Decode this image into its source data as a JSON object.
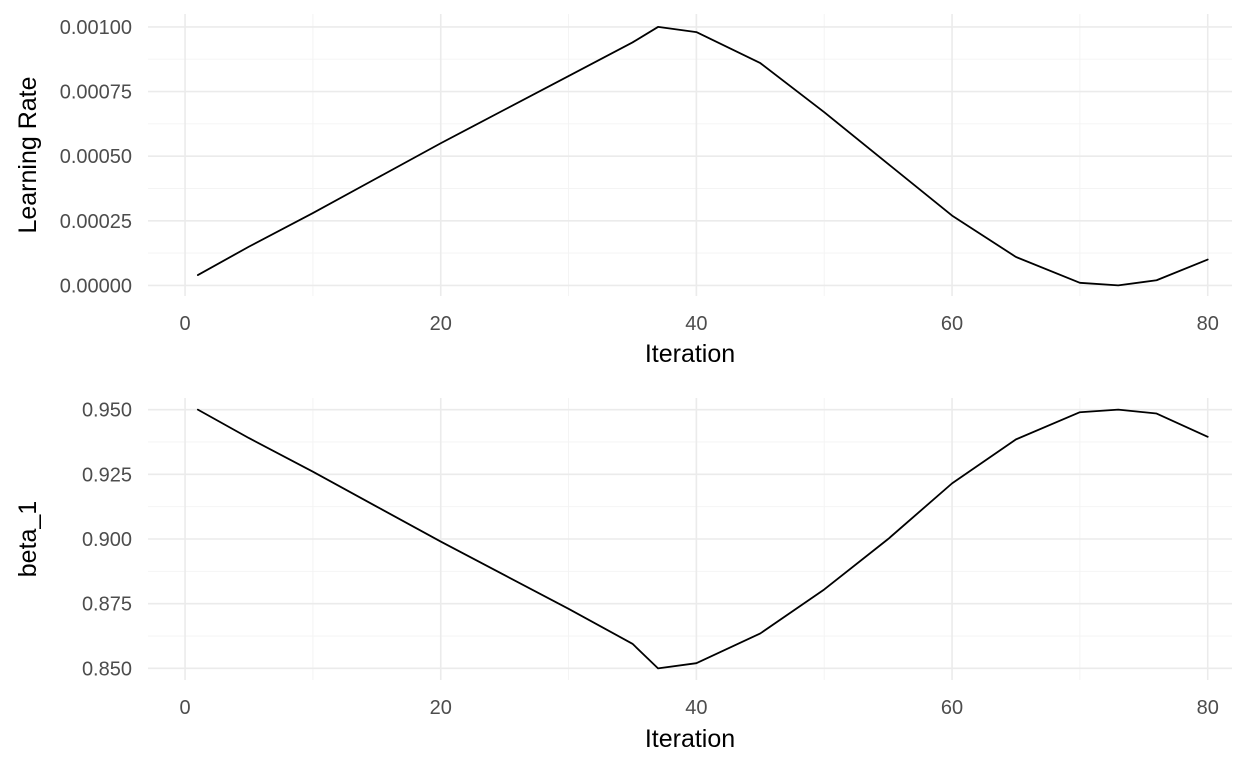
{
  "chart_data": [
    {
      "type": "line",
      "xlabel": "Iteration",
      "ylabel": "Learning Rate",
      "xlim": [
        -2.9,
        81.9
      ],
      "ylim": [
        -4.1e-05,
        0.00105
      ],
      "x_ticks": [
        0,
        20,
        40,
        60,
        80
      ],
      "x_tick_labels": [
        "0",
        "20",
        "40",
        "60",
        "80"
      ],
      "y_ticks": [
        0,
        0.00025,
        0.0005,
        0.00075,
        0.001
      ],
      "y_tick_labels": [
        "0.00000",
        "0.00025",
        "0.00050",
        "0.00075",
        "0.00100"
      ],
      "grid": true,
      "legend": "none",
      "series": [
        {
          "color": "#000000",
          "x": [
            1,
            5,
            10,
            15,
            20,
            25,
            30,
            35,
            37,
            40,
            45,
            50,
            55,
            60,
            65,
            70,
            73,
            76,
            80
          ],
          "y": [
            4e-05,
            0.00015,
            0.00028,
            0.000415,
            0.00055,
            0.00068,
            0.00081,
            0.00094,
            0.001,
            0.00098,
            0.00086,
            0.00067,
            0.00047,
            0.00027,
            0.00011,
            1e-05,
            0.0,
            2e-05,
            0.0001
          ]
        }
      ]
    },
    {
      "type": "line",
      "xlabel": "Iteration",
      "ylabel": "beta_1",
      "xlim": [
        -2.9,
        81.9
      ],
      "ylim": [
        0.8455,
        0.9545
      ],
      "x_ticks": [
        0,
        20,
        40,
        60,
        80
      ],
      "x_tick_labels": [
        "0",
        "20",
        "40",
        "60",
        "80"
      ],
      "y_ticks": [
        0.85,
        0.875,
        0.9,
        0.925,
        0.95
      ],
      "y_tick_labels": [
        "0.850",
        "0.875",
        "0.900",
        "0.925",
        "0.950"
      ],
      "grid": true,
      "legend": "none",
      "series": [
        {
          "color": "#000000",
          "x": [
            1,
            5,
            10,
            15,
            20,
            25,
            30,
            35,
            37,
            40,
            45,
            50,
            55,
            60,
            65,
            70,
            73,
            76,
            80
          ],
          "y": [
            0.95,
            0.939,
            0.926,
            0.9125,
            0.899,
            0.886,
            0.873,
            0.8595,
            0.85,
            0.852,
            0.8635,
            0.8805,
            0.9,
            0.9215,
            0.9385,
            0.949,
            0.95,
            0.9485,
            0.9395
          ]
        }
      ]
    }
  ]
}
